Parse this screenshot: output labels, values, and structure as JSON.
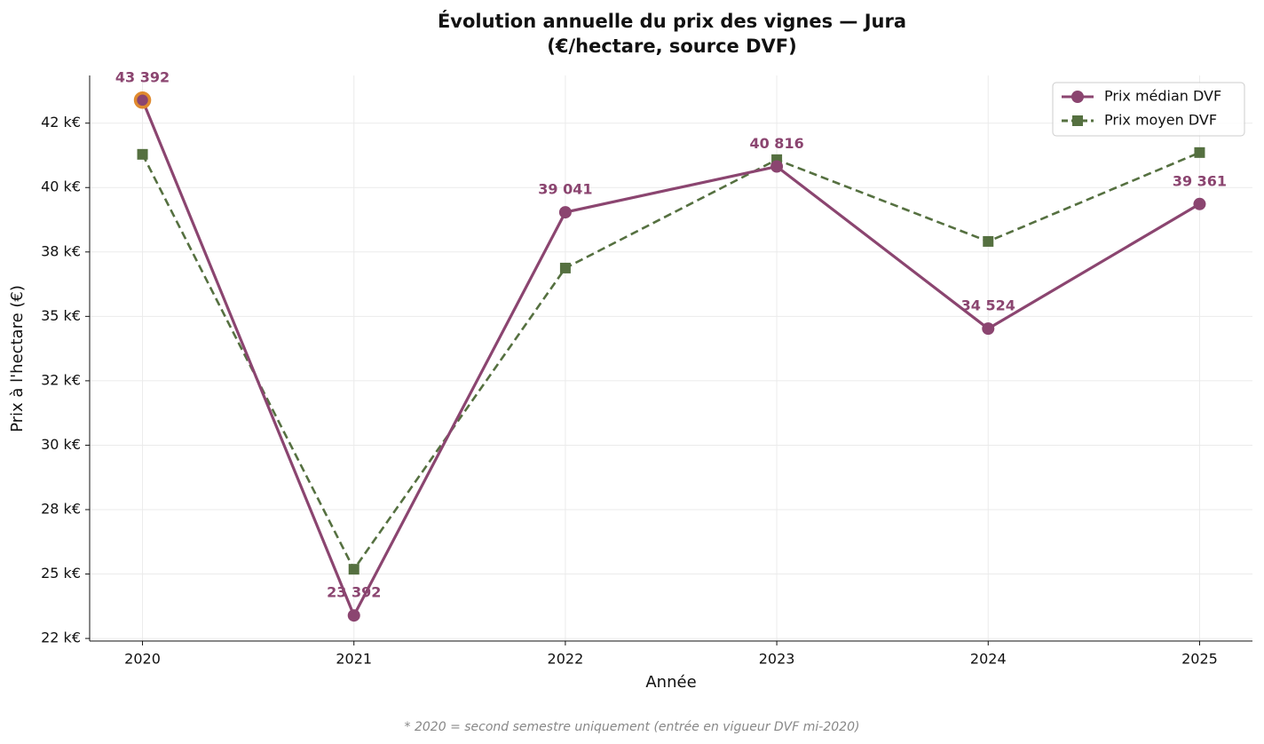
{
  "chart_data": {
    "type": "line",
    "title": [
      "Évolution annuelle du prix des vignes — Jura",
      "(€/hectare, source DVF)"
    ],
    "xlabel": "Année",
    "ylabel": "Prix à l'hectare (€)",
    "footnote": "* 2020 = second semestre uniquement (entrée en vigueur DVF mi-2020)",
    "x": [
      2020,
      2021,
      2022,
      2023,
      2024,
      2025
    ],
    "xlim": [
      2019.75,
      2025.25
    ],
    "xticks": [
      2020,
      2021,
      2022,
      2023,
      2024,
      2025
    ],
    "ylim": [
      22400,
      44350
    ],
    "yticks": [
      {
        "value": 22500,
        "label": "22 k€"
      },
      {
        "value": 25000,
        "label": "25 k€"
      },
      {
        "value": 27500,
        "label": "28 k€"
      },
      {
        "value": 30000,
        "label": "30 k€"
      },
      {
        "value": 32500,
        "label": "32 k€"
      },
      {
        "value": 35000,
        "label": "35 k€"
      },
      {
        "value": 37500,
        "label": "38 k€"
      },
      {
        "value": 40000,
        "label": "40 k€"
      },
      {
        "value": 42500,
        "label": "42 k€"
      }
    ],
    "grid": true,
    "legend": "upper right",
    "series": [
      {
        "name": "Prix médian DVF",
        "color": "#8b4570",
        "marker": "circle",
        "dash": false,
        "highlight_color": "#e08a2e",
        "values": [
          43392,
          23392,
          39041,
          40816,
          34524,
          39361
        ],
        "value_labels": [
          "43 392",
          "23 392",
          "39 041",
          "40 816",
          "34 524",
          "39 361"
        ]
      },
      {
        "name": "Prix moyen DVF",
        "color": "#557040",
        "marker": "square",
        "dash": true,
        "values": [
          41289,
          25185,
          36875,
          41082,
          37909,
          41358
        ]
      }
    ]
  }
}
